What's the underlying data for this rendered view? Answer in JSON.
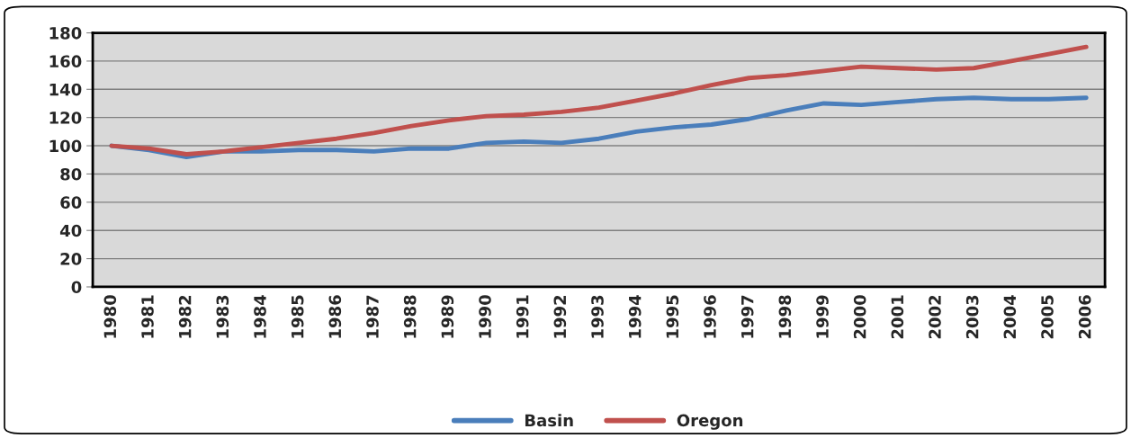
{
  "chart_data": {
    "type": "line",
    "categories": [
      "1980",
      "1981",
      "1982",
      "1983",
      "1984",
      "1985",
      "1986",
      "1987",
      "1988",
      "1989",
      "1990",
      "1991",
      "1992",
      "1993",
      "1994",
      "1995",
      "1996",
      "1997",
      "1998",
      "1999",
      "2000",
      "2001",
      "2002",
      "2003",
      "2004",
      "2005",
      "2006"
    ],
    "series": [
      {
        "name": "Basin",
        "color": "#4a7ebb",
        "values": [
          100,
          97,
          92,
          96,
          96,
          97,
          97,
          96,
          98,
          98,
          102,
          103,
          102,
          105,
          110,
          113,
          115,
          119,
          125,
          130,
          129,
          131,
          133,
          134,
          133,
          133,
          134
        ]
      },
      {
        "name": "Oregon",
        "color": "#c0504d",
        "values": [
          100,
          98,
          94,
          96,
          99,
          102,
          105,
          109,
          114,
          118,
          121,
          122,
          124,
          127,
          132,
          137,
          143,
          148,
          150,
          153,
          156,
          155,
          154,
          155,
          160,
          165,
          170
        ]
      }
    ],
    "ylim": [
      0,
      180
    ],
    "yticks": [
      0,
      20,
      40,
      60,
      80,
      100,
      120,
      140,
      160,
      180
    ],
    "grid": "y",
    "legend": "bottom",
    "marker": "none",
    "line_style": "solid"
  }
}
